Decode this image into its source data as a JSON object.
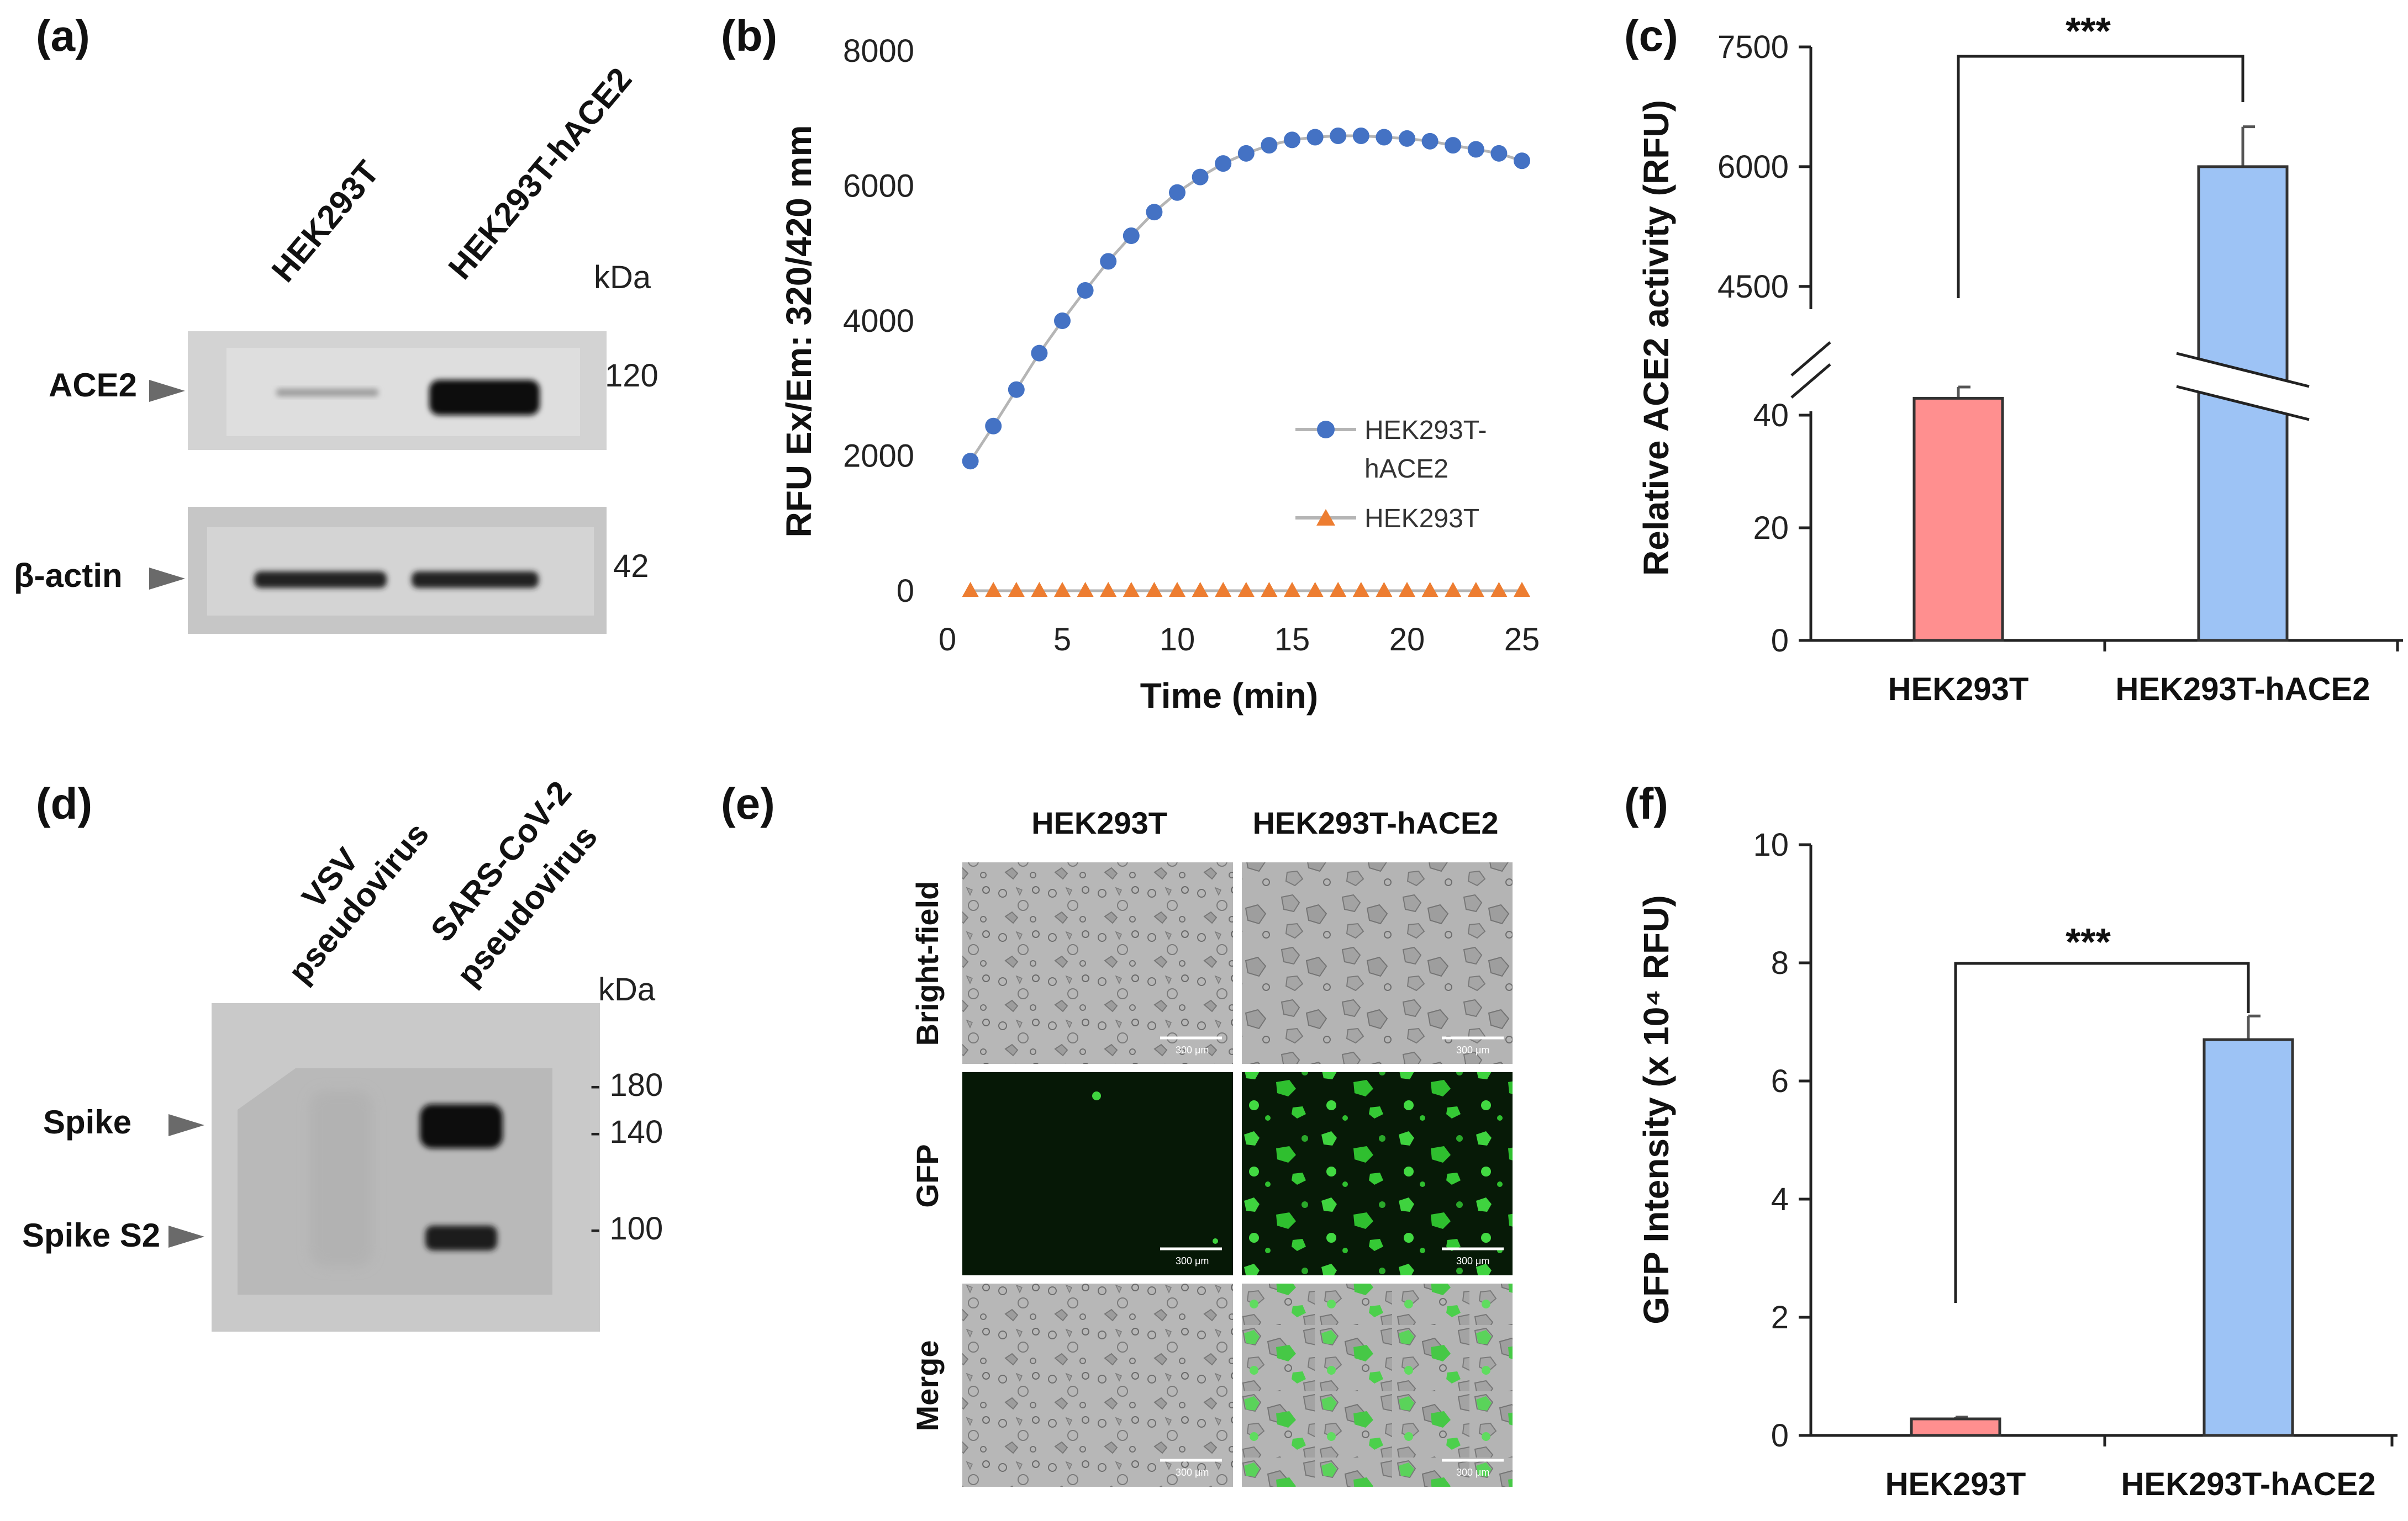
{
  "panels": {
    "a": {
      "label": "(a)",
      "lanes": [
        "HEK293T",
        "HEK293T-hACE2"
      ],
      "kda_label": "kDa",
      "bands": [
        {
          "label": "ACE2",
          "mw": "120"
        },
        {
          "label": "β-actin",
          "mw": "42"
        }
      ]
    },
    "b": {
      "label": "(b)"
    },
    "c": {
      "label": "(c)"
    },
    "d": {
      "label": "(d)",
      "lane1_line1": "VSV",
      "lane1_line2": "pseudovirus",
      "lane2_line1": "SARS-CoV-2",
      "lane2_line2": "pseudovirus",
      "kda_label": "kDa",
      "markers": [
        "- 180",
        "- 140",
        "- 100"
      ],
      "bands": [
        "Spike",
        "Spike S2"
      ]
    },
    "e": {
      "label": "(e)",
      "columns": [
        "HEK293T",
        "HEK293T-hACE2"
      ],
      "rows": [
        "Bright-field",
        "GFP",
        "Merge"
      ],
      "scale_bar": "300 μm"
    },
    "f": {
      "label": "(f)"
    }
  },
  "chart_data": [
    {
      "id": "b",
      "type": "line",
      "xlabel": "Time (min)",
      "ylabel": "RFU Ex/Em: 320/420 mm",
      "xlim": [
        0,
        25
      ],
      "ylim": [
        0,
        8000
      ],
      "xticks": [
        0,
        5,
        10,
        15,
        20,
        25
      ],
      "yticks": [
        0,
        2000,
        4000,
        6000,
        8000
      ],
      "x": [
        1,
        2,
        3,
        4,
        5,
        6,
        7,
        8,
        9,
        10,
        11,
        12,
        13,
        14,
        15,
        16,
        17,
        18,
        19,
        20,
        21,
        22,
        23,
        24,
        25
      ],
      "series": [
        {
          "name": "HEK293T-hACE2",
          "legend_line1": "HEK293T-",
          "legend_line2": "hACE2",
          "color": "#4472C4",
          "marker": "circle",
          "values": [
            1920,
            2440,
            2980,
            3520,
            4000,
            4450,
            4880,
            5260,
            5610,
            5900,
            6130,
            6330,
            6480,
            6600,
            6680,
            6720,
            6740,
            6740,
            6720,
            6700,
            6660,
            6600,
            6540,
            6480,
            6370
          ]
        },
        {
          "name": "HEK293T",
          "legend_line1": "HEK293T",
          "color": "#ED7D31",
          "marker": "triangle",
          "values": [
            0,
            0,
            0,
            0,
            0,
            0,
            0,
            0,
            0,
            0,
            0,
            0,
            0,
            0,
            0,
            0,
            0,
            0,
            0,
            0,
            0,
            0,
            0,
            0,
            0
          ]
        }
      ]
    },
    {
      "id": "c",
      "type": "bar",
      "ylabel": "Relative ACE2 activity (RFU)",
      "categories": [
        "HEK293T",
        "HEK293T-hACE2"
      ],
      "values": [
        43,
        6000
      ],
      "errors": [
        2,
        500
      ],
      "colors": [
        "#FF8F8F",
        "#9DC3F5"
      ],
      "axis_break": {
        "lower": [
          0,
          50
        ],
        "upper": [
          3800,
          7500
        ]
      },
      "yticks_lower": [
        0,
        20,
        40
      ],
      "yticks_upper": [
        4500,
        6000,
        7500
      ],
      "significance": "***"
    },
    {
      "id": "f",
      "type": "bar",
      "ylabel": "GFP Intensity (x 10⁴ RFU)",
      "categories": [
        "HEK293T",
        "HEK293T-hACE2"
      ],
      "values": [
        0.28,
        6.7
      ],
      "errors": [
        0.03,
        0.4
      ],
      "colors": [
        "#FF8F8F",
        "#9DC3F5"
      ],
      "ylim": [
        0,
        10
      ],
      "yticks": [
        0,
        2,
        4,
        6,
        8,
        10
      ],
      "significance": "***"
    }
  ]
}
